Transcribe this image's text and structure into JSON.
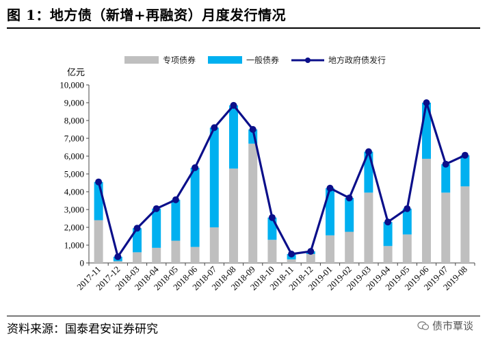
{
  "header": {
    "title": "图 1：地方债（新增+再融资）月度发行情况"
  },
  "footer": {
    "source": "资料来源：国泰君安证券研究",
    "watermark": "债市覃谈",
    "watermark_icon": "wechat-icon"
  },
  "chart_data": {
    "type": "bar",
    "stacked": true,
    "unit_label": "亿元",
    "categories": [
      "2017-11",
      "2017-12",
      "2018-03",
      "2018-04",
      "2018-05",
      "2018-06",
      "2018-07",
      "2018-08",
      "2018-09",
      "2018-10",
      "2018-11",
      "2018-12",
      "2019-01",
      "2019-02",
      "2019-03",
      "2019-04",
      "2019-05",
      "2019-06",
      "2019-07",
      "2019-08"
    ],
    "series": [
      {
        "name": "专项债券",
        "kind": "bar",
        "color": "#bfbfbf",
        "values": [
          2400,
          100,
          600,
          850,
          1250,
          900,
          2000,
          5300,
          6700,
          1300,
          200,
          500,
          1550,
          1750,
          3950,
          950,
          1600,
          5850,
          3950,
          4300
        ]
      },
      {
        "name": "一般债券",
        "kind": "bar",
        "color": "#00b0f0",
        "values": [
          2150,
          250,
          1350,
          2200,
          2300,
          4450,
          5600,
          3550,
          800,
          1250,
          300,
          150,
          2650,
          1900,
          2300,
          1350,
          1450,
          3150,
          1600,
          1750
        ]
      },
      {
        "name": "地方政府债发行",
        "kind": "line",
        "color": "#0b0f8a",
        "values": [
          4550,
          350,
          1950,
          3050,
          3550,
          5350,
          7600,
          8850,
          7500,
          2550,
          500,
          650,
          4200,
          3650,
          6250,
          2300,
          3050,
          9000,
          5550,
          6050
        ]
      }
    ],
    "yticks": [
      "0",
      "1,000",
      "2,000",
      "3,000",
      "4,000",
      "5,000",
      "6,000",
      "7,000",
      "8,000",
      "9,000",
      "10,000"
    ],
    "ylim": [
      0,
      10000
    ],
    "grid": false,
    "legend_position": "top"
  }
}
